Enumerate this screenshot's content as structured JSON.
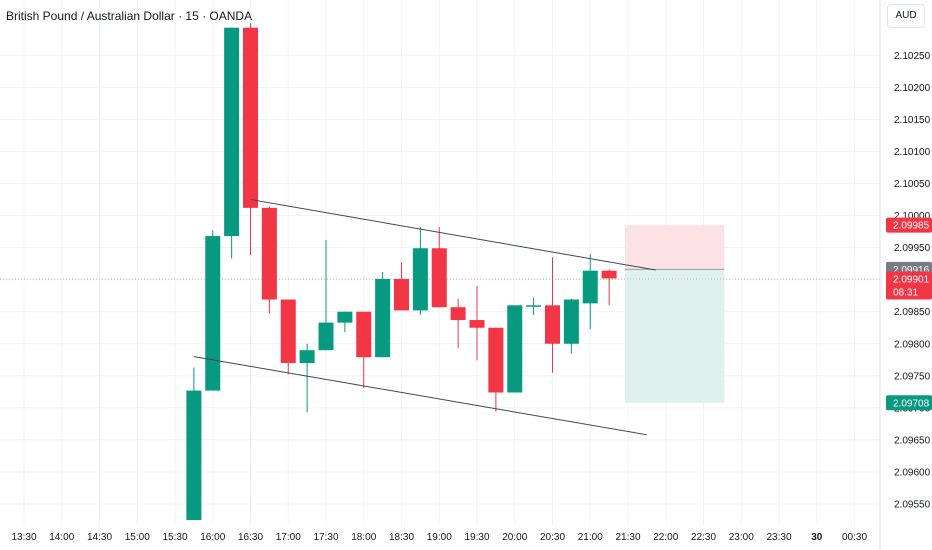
{
  "header": {
    "title": "British Pound / Australian Dollar · 15 · OANDA",
    "currency": "AUD"
  },
  "colors": {
    "up": "#089981",
    "down": "#f23645",
    "grid": "#f0f3fa",
    "trendline": "#434651",
    "stop_zone": "#fde2e5",
    "target_zone": "#dff1ec",
    "current_price_line": "#f7a0a8",
    "tag_gray": "#787b86"
  },
  "chart_data": {
    "type": "candlestick",
    "title": "British Pound / Australian Dollar · 15 · OANDA",
    "ylabel": "AUD",
    "ylim": [
      2.09522,
      2.10305
    ],
    "x_ticks": [
      "13:30",
      "14:00",
      "14:30",
      "15:00",
      "15:30",
      "16:00",
      "16:30",
      "17:00",
      "17:30",
      "18:00",
      "18:30",
      "19:00",
      "19:30",
      "20:00",
      "20:30",
      "21:00",
      "21:30",
      "22:00",
      "22:30",
      "23:00",
      "23:30",
      "30",
      "00:30"
    ],
    "y_ticks": [
      "2.09550",
      "2.09600",
      "2.09650",
      "2.09700",
      "2.09750",
      "2.09800",
      "2.09850",
      "2.09900",
      "2.09950",
      "2.10000",
      "2.10050",
      "2.10100",
      "2.10150",
      "2.10200",
      "2.10250"
    ],
    "candles": [
      {
        "time": "15:45",
        "o": 2.09525,
        "h": 2.09763,
        "l": 2.09525,
        "c": 2.09727
      },
      {
        "time": "16:00",
        "o": 2.09727,
        "h": 2.09977,
        "l": 2.09727,
        "c": 2.09968
      },
      {
        "time": "16:15",
        "o": 2.09968,
        "h": 2.10293,
        "l": 2.09933,
        "c": 2.10293
      },
      {
        "time": "16:30",
        "o": 2.10293,
        "h": 2.103,
        "l": 2.09938,
        "c": 2.10012
      },
      {
        "time": "16:45",
        "o": 2.10012,
        "h": 2.10014,
        "l": 2.09847,
        "c": 2.09869
      },
      {
        "time": "17:00",
        "o": 2.09869,
        "h": 2.09869,
        "l": 2.09752,
        "c": 2.0977
      },
      {
        "time": "17:15",
        "o": 2.0977,
        "h": 2.098,
        "l": 2.09693,
        "c": 2.0979
      },
      {
        "time": "17:30",
        "o": 2.0979,
        "h": 2.09962,
        "l": 2.0979,
        "c": 2.09833
      },
      {
        "time": "17:45",
        "o": 2.09833,
        "h": 2.0985,
        "l": 2.09818,
        "c": 2.0985
      },
      {
        "time": "18:00",
        "o": 2.0985,
        "h": 2.0985,
        "l": 2.09731,
        "c": 2.09779
      },
      {
        "time": "18:15",
        "o": 2.09779,
        "h": 2.09912,
        "l": 2.09779,
        "c": 2.09901
      },
      {
        "time": "18:30",
        "o": 2.09901,
        "h": 2.09927,
        "l": 2.09852,
        "c": 2.09852
      },
      {
        "time": "18:45",
        "o": 2.09852,
        "h": 2.09982,
        "l": 2.09845,
        "c": 2.09949
      },
      {
        "time": "19:00",
        "o": 2.09949,
        "h": 2.09982,
        "l": 2.09857,
        "c": 2.09857
      },
      {
        "time": "19:15",
        "o": 2.09857,
        "h": 2.0987,
        "l": 2.09793,
        "c": 2.09837
      },
      {
        "time": "19:30",
        "o": 2.09837,
        "h": 2.0989,
        "l": 2.09774,
        "c": 2.09825
      },
      {
        "time": "19:45",
        "o": 2.09825,
        "h": 2.09825,
        "l": 2.09694,
        "c": 2.09724
      },
      {
        "time": "20:00",
        "o": 2.09724,
        "h": 2.09854,
        "l": 2.09724,
        "c": 2.0986
      },
      {
        "time": "20:15",
        "o": 2.0986,
        "h": 2.09872,
        "l": 2.09845,
        "c": 2.0986
      },
      {
        "time": "20:30",
        "o": 2.0986,
        "h": 2.09935,
        "l": 2.09755,
        "c": 2.098
      },
      {
        "time": "20:45",
        "o": 2.098,
        "h": 2.0987,
        "l": 2.09785,
        "c": 2.09869
      },
      {
        "time": "21:00",
        "o": 2.09863,
        "h": 2.0994,
        "l": 2.09823,
        "c": 2.09914
      },
      {
        "time": "21:15",
        "o": 2.09914,
        "h": 2.09916,
        "l": 2.0986,
        "c": 2.09902
      }
    ],
    "trendlines": [
      {
        "from": {
          "time": "16:30",
          "price": 2.10025
        },
        "to": {
          "time": "22:00",
          "price": 2.09915
        }
      },
      {
        "from": {
          "time": "15:45",
          "price": 2.0978
        },
        "to": {
          "time": "21:45",
          "price": 2.09658
        }
      }
    ],
    "position": {
      "type": "short",
      "start_time": "21:30",
      "end_time": "22:45",
      "entry": 2.09916,
      "stop": 2.09985,
      "target": 2.09708
    },
    "current_price": 2.09901,
    "countdown": "08:31",
    "price_tags": [
      {
        "label": "2.09985",
        "price": 2.09985,
        "color": "#f23645"
      },
      {
        "label": "2.09916",
        "price": 2.09916,
        "color": "#787b86"
      },
      {
        "label": "2.09901",
        "price": 2.09901,
        "color": "#f23645",
        "sub": "08:31"
      },
      {
        "label": "2.09708",
        "price": 2.09708,
        "color": "#089981"
      }
    ]
  }
}
